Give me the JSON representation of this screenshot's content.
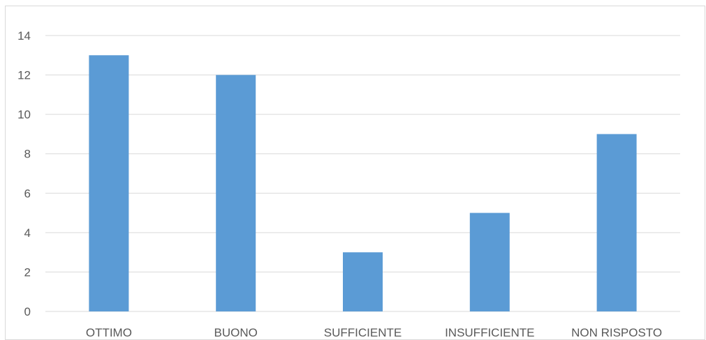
{
  "chart_data": {
    "type": "bar",
    "categories": [
      "OTTIMO",
      "BUONO",
      "SUFFICIENTE",
      "INSUFFICIENTE",
      "NON RISPOSTO"
    ],
    "values": [
      13,
      12,
      3,
      5,
      9
    ],
    "ylim": [
      0,
      14
    ],
    "yticks": [
      0,
      2,
      4,
      6,
      8,
      10,
      12,
      14
    ],
    "grid": true,
    "colors": {
      "bar": "#5b9bd5",
      "grid": "#d9d9d9",
      "text": "#595959"
    }
  }
}
